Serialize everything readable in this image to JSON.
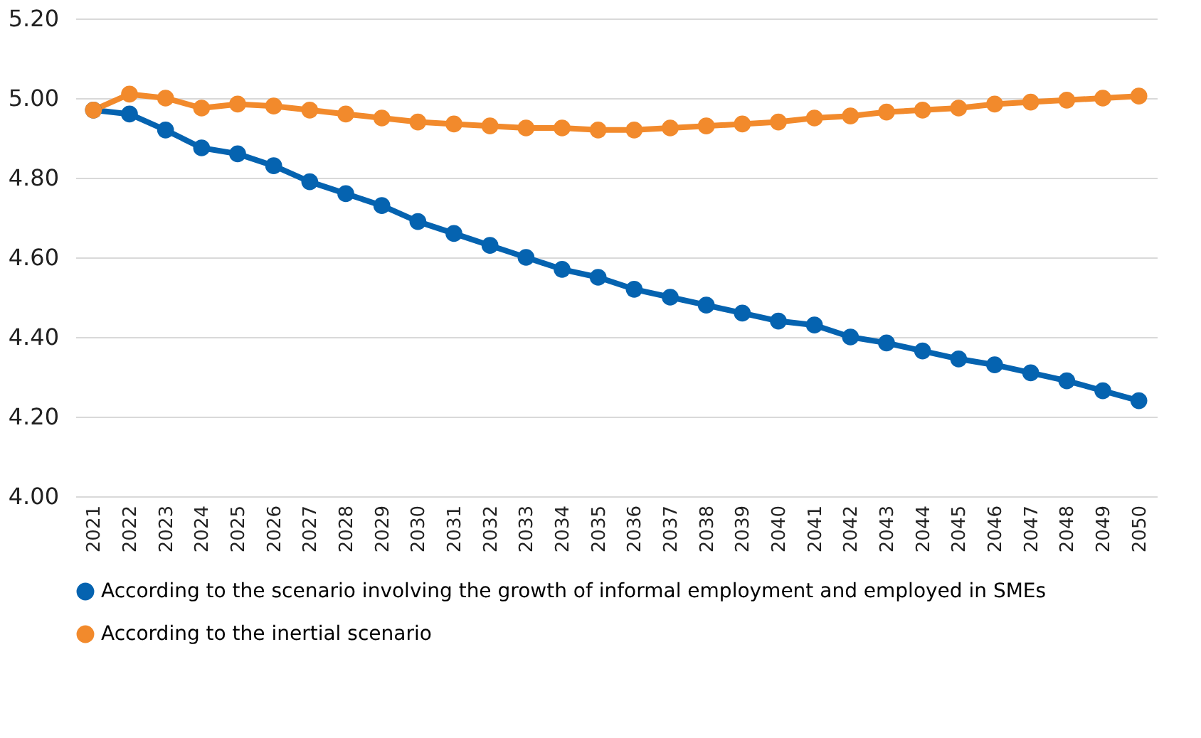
{
  "chart_data": {
    "type": "line",
    "categories": [
      "2021",
      "2022",
      "2023",
      "2024",
      "2025",
      "2026",
      "2027",
      "2028",
      "2029",
      "2030",
      "2031",
      "2032",
      "2033",
      "2034",
      "2035",
      "2036",
      "2037",
      "2038",
      "2039",
      "2040",
      "2041",
      "2042",
      "2043",
      "2044",
      "2045",
      "2046",
      "2047",
      "2048",
      "2049",
      "2050"
    ],
    "series": [
      {
        "name": "According to the scenario involving the growth of informal employment and employed in SMEs",
        "color": "#0563b0",
        "values": [
          4.97,
          4.96,
          4.92,
          4.875,
          4.86,
          4.83,
          4.79,
          4.76,
          4.73,
          4.69,
          4.66,
          4.63,
          4.6,
          4.57,
          4.55,
          4.52,
          4.5,
          4.48,
          4.46,
          4.44,
          4.43,
          4.4,
          4.385,
          4.365,
          4.345,
          4.33,
          4.31,
          4.29,
          4.265,
          4.24
        ]
      },
      {
        "name": "According to the inertial scenario",
        "color": "#f28a2c",
        "values": [
          4.97,
          5.01,
          5.0,
          4.975,
          4.985,
          4.98,
          4.97,
          4.96,
          4.95,
          4.94,
          4.935,
          4.93,
          4.925,
          4.925,
          4.92,
          4.92,
          4.925,
          4.93,
          4.935,
          4.94,
          4.95,
          4.955,
          4.965,
          4.97,
          4.975,
          4.985,
          4.99,
          4.995,
          5.0,
          5.005
        ]
      }
    ],
    "ylim": [
      4.0,
      5.2
    ],
    "yticks": [
      {
        "value": 4.0,
        "label": "4.00"
      },
      {
        "value": 4.2,
        "label": "4.20"
      },
      {
        "value": 4.4,
        "label": "4.40"
      },
      {
        "value": 4.6,
        "label": "4.60"
      },
      {
        "value": 4.8,
        "label": "4.80"
      },
      {
        "value": 5.0,
        "label": "5.00"
      },
      {
        "value": 5.2,
        "label": "5.20"
      }
    ],
    "grid": "y",
    "legend": "bottom",
    "marker": "circle",
    "line_style": "solid"
  }
}
